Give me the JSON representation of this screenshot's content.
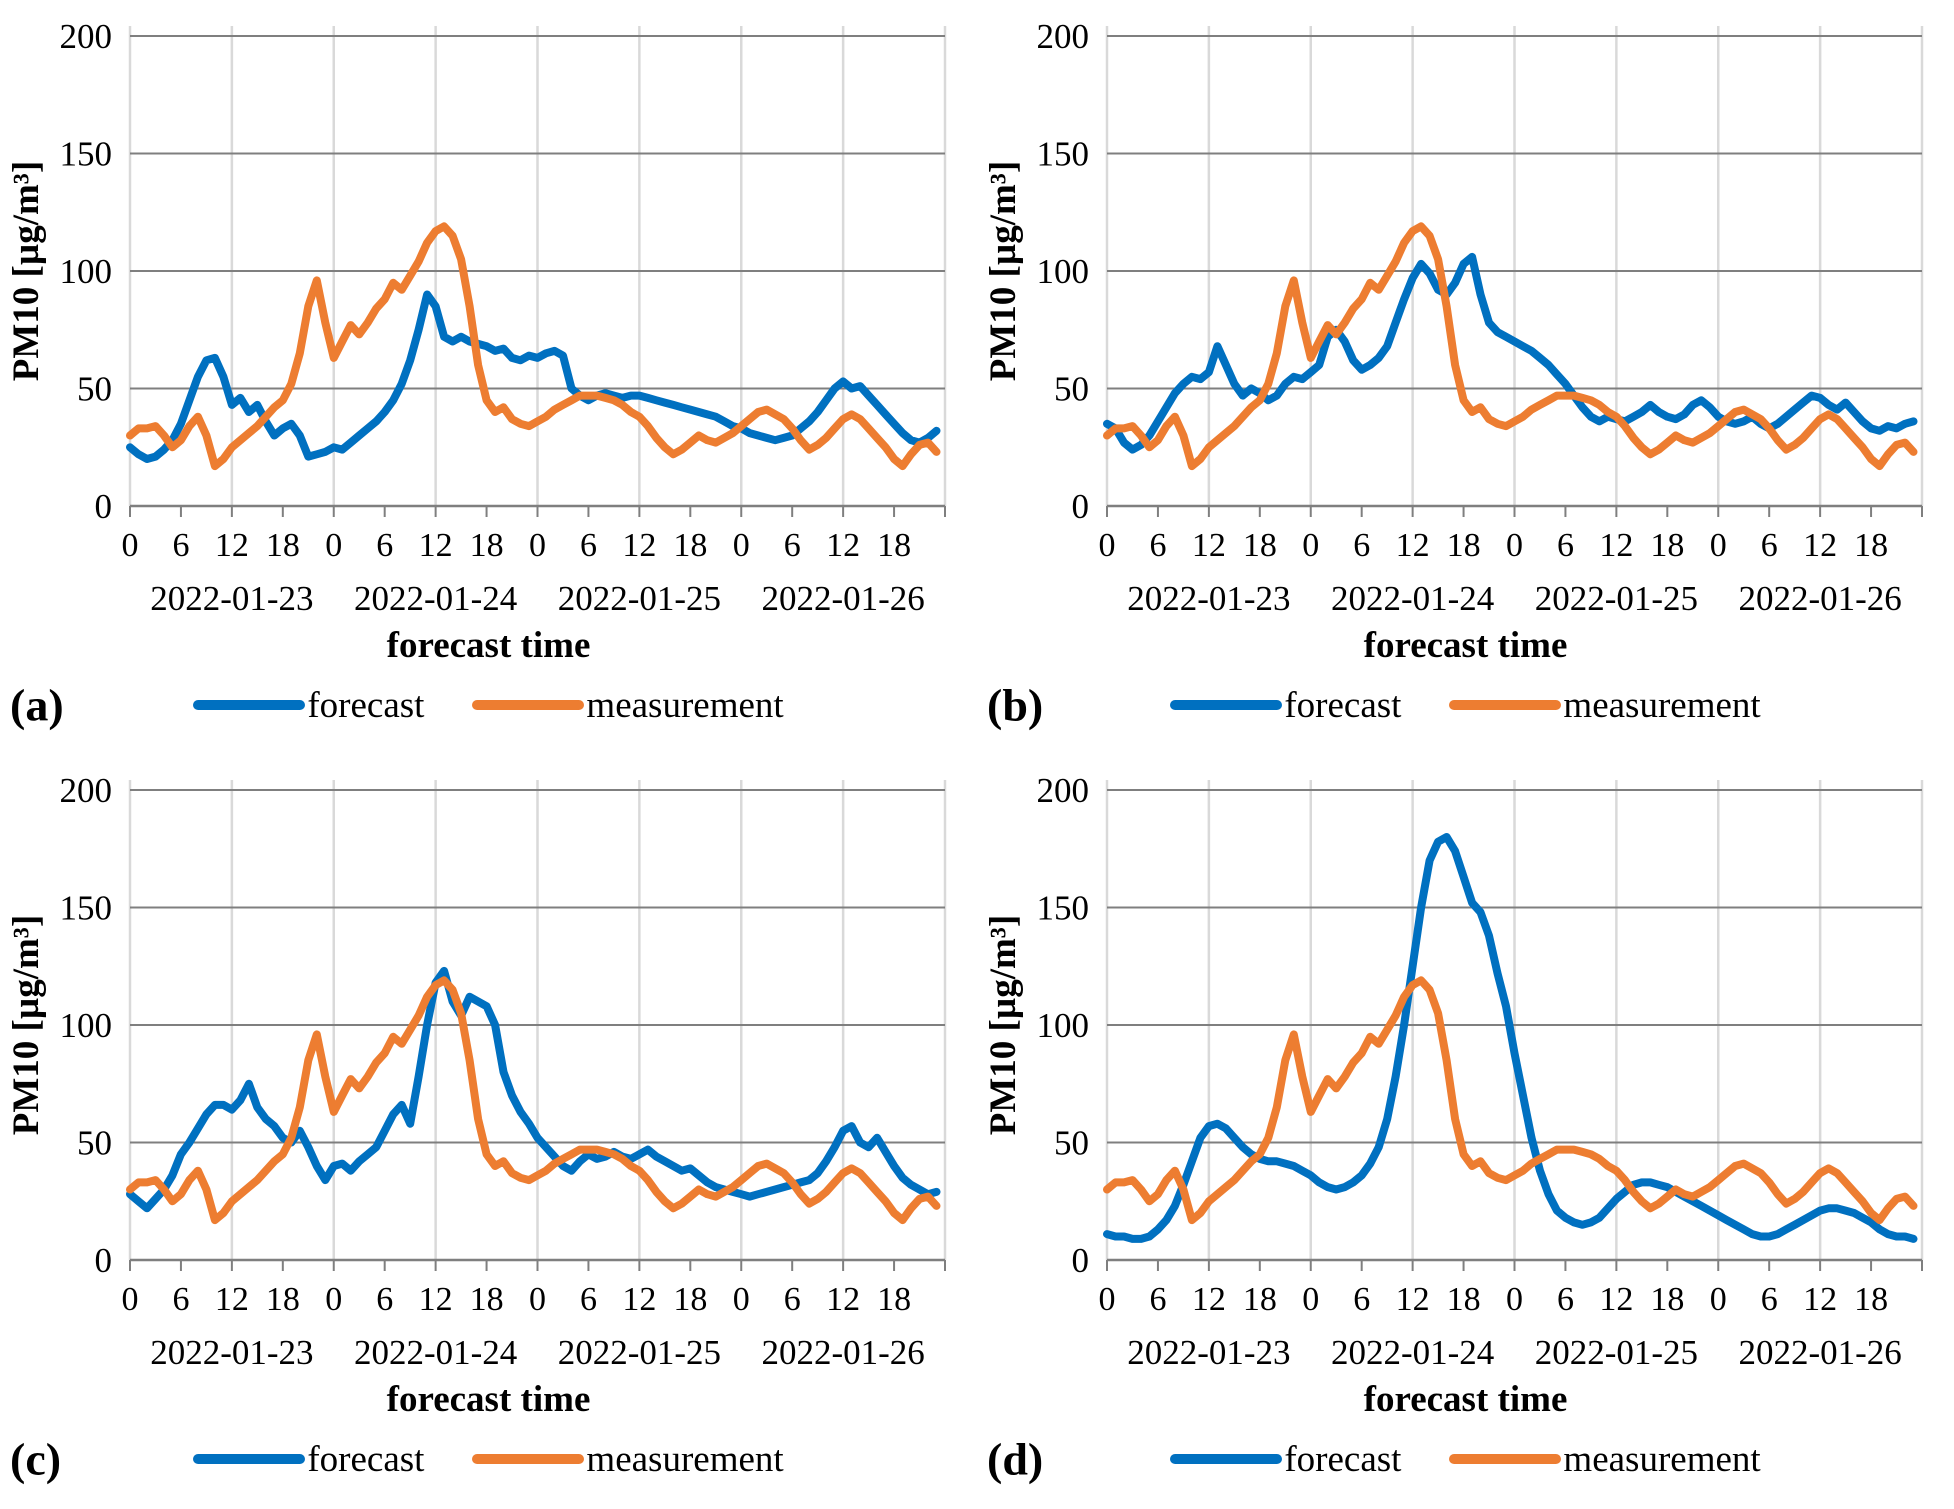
{
  "chart_data": {
    "type": "line",
    "ylabel": "PM10 [µg/m³]",
    "xlabel": "forecast time",
    "legend": [
      "forecast",
      "measurement"
    ],
    "colors": {
      "forecast": "#0070C0",
      "measurement": "#ED7D31"
    },
    "ylim": [
      0,
      200
    ],
    "yticks": [
      0,
      50,
      100,
      150,
      200
    ],
    "hours_total": 96,
    "hour_tick_step": 6,
    "hour_tick_labels": [
      "0",
      "6",
      "12",
      "18"
    ],
    "dates": [
      "2022-01-23",
      "2022-01-24",
      "2022-01-25",
      "2022-01-26"
    ],
    "grid": {
      "vertical_every_hours": 12,
      "horizontal_color": "#7F7F7F",
      "vertical_color": "#D9D9D9"
    },
    "measurement": [
      30,
      33,
      33,
      34,
      30,
      25,
      28,
      34,
      38,
      30,
      17,
      20,
      25,
      28,
      31,
      34,
      38,
      42,
      45,
      52,
      65,
      85,
      96,
      78,
      63,
      70,
      77,
      73,
      78,
      84,
      88,
      95,
      92,
      98,
      104,
      112,
      117,
      119,
      115,
      105,
      85,
      60,
      45,
      40,
      42,
      37,
      35,
      34,
      36,
      38,
      41,
      43,
      45,
      47,
      47,
      47,
      46,
      45,
      43,
      40,
      38,
      34,
      29,
      25,
      22,
      24,
      27,
      30,
      28,
      27,
      29,
      31,
      34,
      37,
      40,
      41,
      39,
      37,
      33,
      28,
      24,
      26,
      29,
      33,
      37,
      39,
      37,
      33,
      29,
      25,
      20,
      17,
      22,
      26,
      27,
      23
    ],
    "panels": [
      {
        "label": "(a)",
        "forecast": [
          25,
          22,
          20,
          21,
          24,
          28,
          35,
          45,
          55,
          62,
          63,
          55,
          43,
          46,
          40,
          43,
          36,
          30,
          33,
          35,
          30,
          21,
          22,
          23,
          25,
          24,
          27,
          30,
          33,
          36,
          40,
          45,
          52,
          62,
          75,
          90,
          85,
          72,
          70,
          72,
          70,
          69,
          68,
          66,
          67,
          63,
          62,
          64,
          63,
          65,
          66,
          64,
          50,
          47,
          45,
          47,
          48,
          47,
          46,
          47,
          47,
          46,
          45,
          44,
          43,
          42,
          41,
          40,
          39,
          38,
          36,
          34,
          33,
          31,
          30,
          29,
          28,
          29,
          30,
          33,
          36,
          40,
          45,
          50,
          53,
          50,
          51,
          47,
          43,
          39,
          35,
          31,
          28,
          27,
          29,
          32
        ]
      },
      {
        "label": "(b)",
        "forecast": [
          35,
          33,
          27,
          24,
          26,
          30,
          36,
          42,
          48,
          52,
          55,
          54,
          57,
          68,
          60,
          52,
          47,
          50,
          48,
          45,
          47,
          52,
          55,
          54,
          57,
          60,
          72,
          75,
          70,
          62,
          58,
          60,
          63,
          68,
          78,
          88,
          97,
          103,
          99,
          92,
          90,
          95,
          103,
          106,
          90,
          78,
          74,
          72,
          70,
          68,
          66,
          63,
          60,
          56,
          52,
          47,
          42,
          38,
          36,
          38,
          37,
          36,
          38,
          40,
          43,
          40,
          38,
          37,
          39,
          43,
          45,
          42,
          38,
          36,
          35,
          36,
          38,
          35,
          33,
          35,
          38,
          41,
          44,
          47,
          46,
          43,
          41,
          44,
          40,
          36,
          33,
          32,
          34,
          33,
          35,
          36
        ]
      },
      {
        "label": "(c)",
        "forecast": [
          28,
          25,
          22,
          26,
          30,
          36,
          45,
          50,
          56,
          62,
          66,
          66,
          64,
          68,
          75,
          65,
          60,
          57,
          52,
          50,
          55,
          48,
          40,
          34,
          40,
          41,
          38,
          42,
          45,
          48,
          55,
          62,
          66,
          58,
          78,
          100,
          118,
          123,
          110,
          104,
          112,
          110,
          108,
          100,
          80,
          70,
          63,
          58,
          52,
          48,
          44,
          40,
          38,
          42,
          45,
          43,
          44,
          46,
          44,
          43,
          45,
          47,
          44,
          42,
          40,
          38,
          39,
          36,
          33,
          31,
          30,
          29,
          28,
          27,
          28,
          29,
          30,
          31,
          32,
          33,
          34,
          37,
          42,
          48,
          55,
          57,
          50,
          48,
          52,
          46,
          40,
          35,
          32,
          30,
          28,
          29
        ]
      },
      {
        "label": "(d)",
        "forecast": [
          11,
          10,
          10,
          9,
          9,
          10,
          13,
          17,
          23,
          32,
          42,
          52,
          57,
          58,
          56,
          52,
          48,
          45,
          43,
          42,
          42,
          41,
          40,
          38,
          36,
          33,
          31,
          30,
          31,
          33,
          36,
          41,
          48,
          60,
          78,
          100,
          125,
          150,
          170,
          178,
          180,
          174,
          163,
          152,
          148,
          138,
          122,
          108,
          88,
          70,
          52,
          38,
          28,
          21,
          18,
          16,
          15,
          16,
          18,
          22,
          26,
          29,
          32,
          33,
          33,
          32,
          31,
          29,
          27,
          25,
          23,
          21,
          19,
          17,
          15,
          13,
          11,
          10,
          10,
          11,
          13,
          15,
          17,
          19,
          21,
          22,
          22,
          21,
          20,
          18,
          16,
          13,
          11,
          10,
          10,
          9
        ]
      }
    ]
  }
}
